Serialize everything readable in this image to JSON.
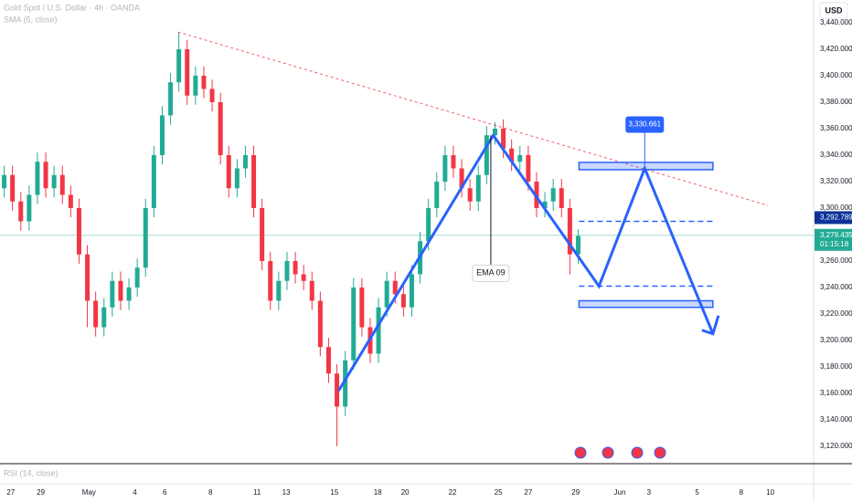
{
  "chart_data": {
    "type": "candlestick",
    "title": "Gold Spot / U.S. Dollar · 4h · OANDA",
    "indicator": "SMA (5, close)",
    "rsi_label": "RSI (14, close)",
    "currency": "USD",
    "up_color": "#22ab94",
    "down_color": "#f23645",
    "xlim": [
      -0.5,
      97.3
    ],
    "xticks": [
      {
        "value": 0.8,
        "label": "27"
      },
      {
        "value": 4.4,
        "label": "29"
      },
      {
        "value": 10.2,
        "label": "May"
      },
      {
        "value": 15.7,
        "label": "4"
      },
      {
        "value": 19.3,
        "label": "6"
      },
      {
        "value": 24.8,
        "label": "8"
      },
      {
        "value": 30.4,
        "label": "11"
      },
      {
        "value": 33.9,
        "label": "13"
      },
      {
        "value": 39.7,
        "label": "15"
      },
      {
        "value": 44.9,
        "label": "18"
      },
      {
        "value": 48.2,
        "label": "20"
      },
      {
        "value": 53.9,
        "label": "22"
      },
      {
        "value": 59.4,
        "label": "25"
      },
      {
        "value": 63,
        "label": "27"
      },
      {
        "value": 68.7,
        "label": "29"
      },
      {
        "value": 74,
        "label": "Jun"
      },
      {
        "value": 77.5,
        "label": "3"
      },
      {
        "value": 83.3,
        "label": "5"
      },
      {
        "value": 88.6,
        "label": "8"
      },
      {
        "value": 92.1,
        "label": "10"
      }
    ],
    "ylim": [
      3107.6,
      3457.2
    ],
    "yticks": [
      {
        "value": 3120,
        "label": "3,120.000"
      },
      {
        "value": 3140,
        "label": "3,140.000"
      },
      {
        "value": 3160,
        "label": "3,160.000"
      },
      {
        "value": 3180,
        "label": "3,180.000"
      },
      {
        "value": 3200,
        "label": "3,200.000"
      },
      {
        "value": 3220,
        "label": "3,220.000"
      },
      {
        "value": 3240,
        "label": "3,240.000"
      },
      {
        "value": 3260,
        "label": "3,260.000"
      },
      {
        "value": 3300,
        "label": "3,300.000"
      },
      {
        "value": 3320,
        "label": "3,320.000"
      },
      {
        "value": 3340,
        "label": "3,340.000"
      },
      {
        "value": 3360,
        "label": "3,360.000"
      },
      {
        "value": 3380,
        "label": "3,380.000"
      },
      {
        "value": 3400,
        "label": "3,400.000"
      },
      {
        "value": 3420,
        "label": "3,420.000"
      },
      {
        "value": 3440,
        "label": "3,440.000"
      }
    ],
    "open": [
      3315,
      3325,
      3305,
      3290,
      3310,
      3335,
      3315,
      3325,
      3310,
      3300,
      3265,
      3230,
      3210,
      3225,
      3245,
      3230,
      3240,
      3255,
      3300,
      3340,
      3370,
      3395,
      3420,
      3385,
      3400,
      3390,
      3380,
      3340,
      3315,
      3330,
      3340,
      3300,
      3260,
      3230,
      3245,
      3260,
      3250,
      3245,
      3230,
      3195,
      3175,
      3150,
      3185,
      3240,
      3210,
      3190,
      3225,
      3245,
      3235,
      3225,
      3250,
      3275,
      3300,
      3320,
      3340,
      3330,
      3315,
      3305,
      3325,
      3355,
      3360,
      3345,
      3335,
      3340,
      3320,
      3300,
      3305,
      3315,
      3300,
      3265
    ],
    "high": [
      3332,
      3332,
      3312,
      3317,
      3342,
      3342,
      3332,
      3332,
      3317,
      3307,
      3272,
      3237,
      3232,
      3252,
      3252,
      3247,
      3262,
      3307,
      3347,
      3377,
      3402,
      3433,
      3427,
      3407,
      3407,
      3397,
      3387,
      3347,
      3337,
      3347,
      3347,
      3307,
      3267,
      3252,
      3267,
      3267,
      3257,
      3252,
      3237,
      3202,
      3182,
      3192,
      3247,
      3247,
      3217,
      3232,
      3252,
      3252,
      3242,
      3257,
      3282,
      3307,
      3327,
      3347,
      3347,
      3337,
      3322,
      3332,
      3362,
      3365,
      3367,
      3352,
      3347,
      3347,
      3327,
      3312,
      3322,
      3322,
      3307,
      3284
    ],
    "low": [
      3308,
      3298,
      3283,
      3283,
      3303,
      3308,
      3308,
      3303,
      3293,
      3258,
      3210,
      3203,
      3203,
      3218,
      3223,
      3223,
      3233,
      3248,
      3293,
      3333,
      3363,
      3388,
      3378,
      3378,
      3383,
      3373,
      3333,
      3308,
      3308,
      3323,
      3293,
      3253,
      3223,
      3223,
      3238,
      3243,
      3238,
      3223,
      3188,
      3168,
      3120,
      3143,
      3178,
      3203,
      3183,
      3183,
      3218,
      3228,
      3218,
      3218,
      3243,
      3268,
      3293,
      3313,
      3323,
      3308,
      3298,
      3298,
      3318,
      3348,
      3338,
      3328,
      3328,
      3313,
      3293,
      3293,
      3298,
      3293,
      3250,
      3258
    ],
    "close": [
      3325,
      3305,
      3290,
      3310,
      3335,
      3315,
      3325,
      3310,
      3300,
      3265,
      3230,
      3210,
      3225,
      3245,
      3230,
      3240,
      3255,
      3300,
      3340,
      3370,
      3395,
      3420,
      3385,
      3400,
      3390,
      3380,
      3340,
      3315,
      3330,
      3340,
      3300,
      3260,
      3230,
      3245,
      3260,
      3250,
      3245,
      3230,
      3195,
      3175,
      3150,
      3185,
      3240,
      3210,
      3190,
      3225,
      3245,
      3235,
      3225,
      3250,
      3275,
      3300,
      3320,
      3340,
      3330,
      3315,
      3305,
      3325,
      3355,
      3360,
      3345,
      3335,
      3340,
      3320,
      3300,
      3305,
      3315,
      3300,
      3265,
      3279
    ],
    "last_price": {
      "value": 3279.435,
      "label": "3,279.435"
    },
    "countdown": "01:15:18",
    "marked_price": {
      "value": 3292.789,
      "label": "3,292.789"
    },
    "trendline": {
      "x": [
        20.9,
        91.8
      ],
      "y": [
        3433,
        3302
      ],
      "color": "#f23645"
    },
    "zigzag": {
      "x": [
        40.2,
        58.8,
        71.5,
        77,
        85.2
      ],
      "y": [
        3162,
        3355,
        3241,
        3330,
        3205
      ],
      "color": "#2962ff"
    },
    "zones": [
      {
        "x": [
          69.1,
          85.2
        ],
        "y": [
          3329,
          3334.5
        ]
      },
      {
        "x": [
          69.1,
          85.2
        ],
        "y": [
          3225,
          3230
        ]
      }
    ],
    "levels": [
      {
        "x": [
          69.1,
          85.2
        ],
        "y": 3290
      },
      {
        "x": [
          69.1,
          85.2
        ],
        "y": 3241
      }
    ],
    "callout": {
      "text": "EMA 09",
      "x": 58.5,
      "y": [
        3355,
        3257
      ]
    },
    "target": {
      "value": 3330.661,
      "label": "3,330.661",
      "x": 77
    }
  }
}
